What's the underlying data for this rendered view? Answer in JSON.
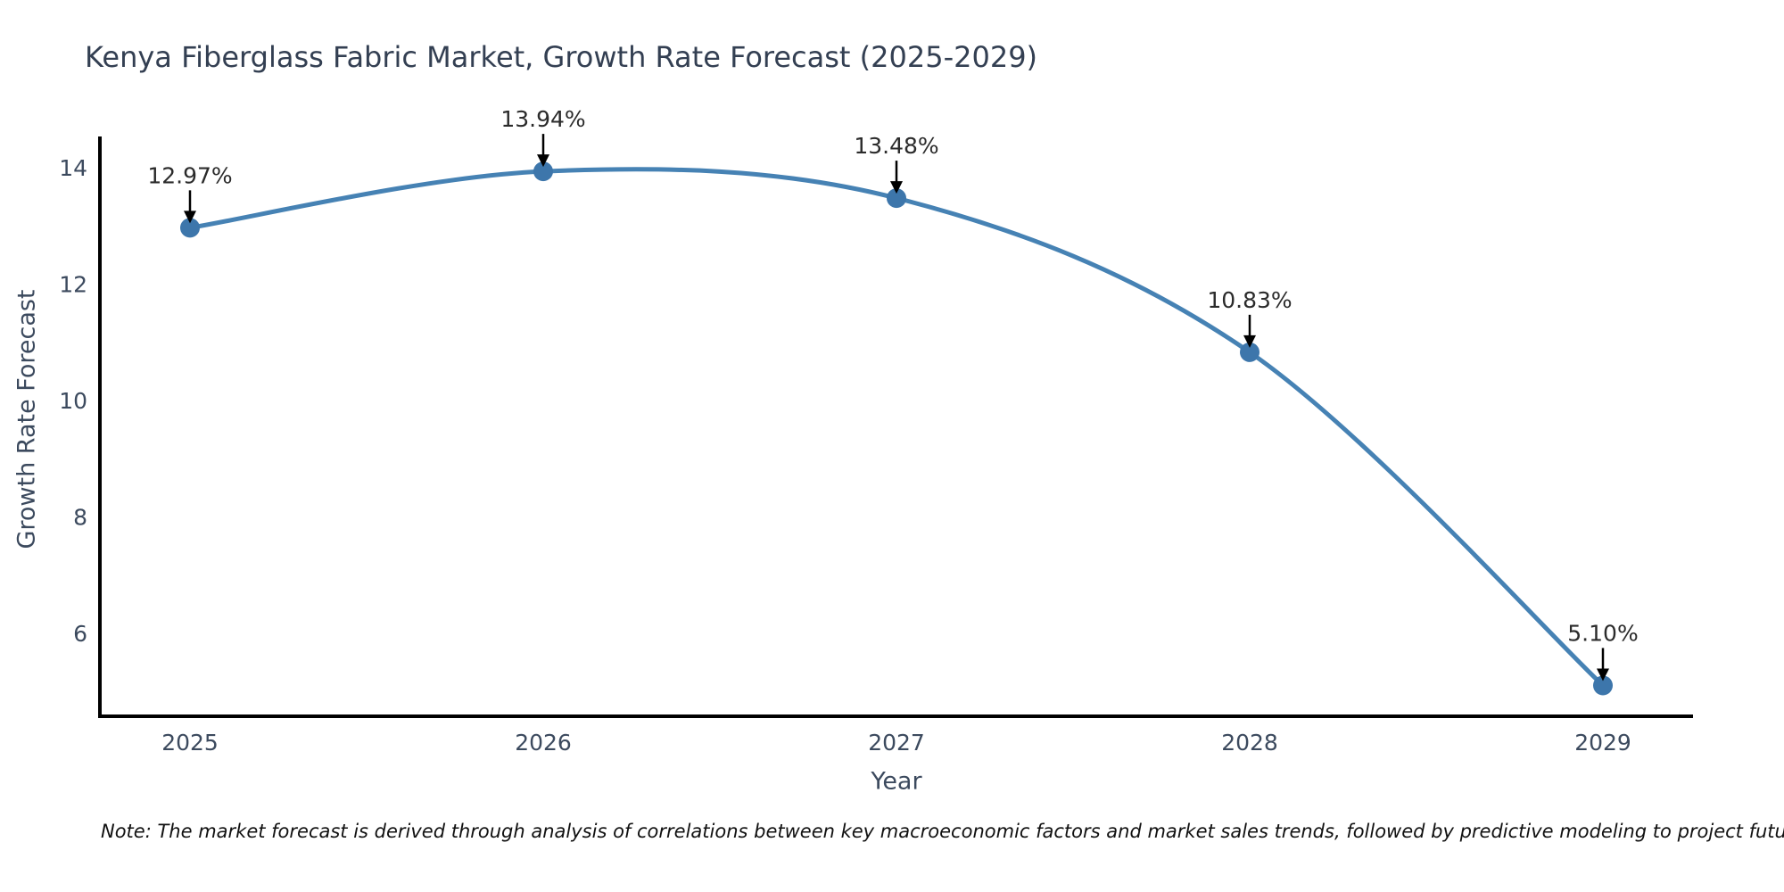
{
  "chart_data": {
    "type": "line",
    "title": "Kenya Fiberglass Fabric Market, Growth Rate Forecast (2025-2029)",
    "xlabel": "Year",
    "ylabel": "Growth Rate Forecast",
    "categories": [
      "2025",
      "2026",
      "2027",
      "2028",
      "2029"
    ],
    "values": [
      12.97,
      13.94,
      13.48,
      10.83,
      5.1
    ],
    "point_labels": [
      "12.97%",
      "13.94%",
      "13.48%",
      "10.83%",
      "5.10%"
    ],
    "yticks": [
      6,
      8,
      10,
      12,
      14
    ],
    "ylim": [
      4.57,
      14.54
    ],
    "grid": false,
    "legend": "none",
    "smooth": true,
    "line_color": "#4682B4",
    "marker_color": "#3D76AB",
    "axis_spine_color": "#000000",
    "tick_label_color": "#3C4A5E",
    "title_color": "#333F52",
    "annotation_text_color": "#2B2B2B",
    "annotation_arrow_color": "#000000"
  },
  "note": {
    "text": "Note: The market forecast is derived through analysis of correlations between key macroeconomic factors and market sales trends, followed by predictive modeling to project future sales"
  }
}
